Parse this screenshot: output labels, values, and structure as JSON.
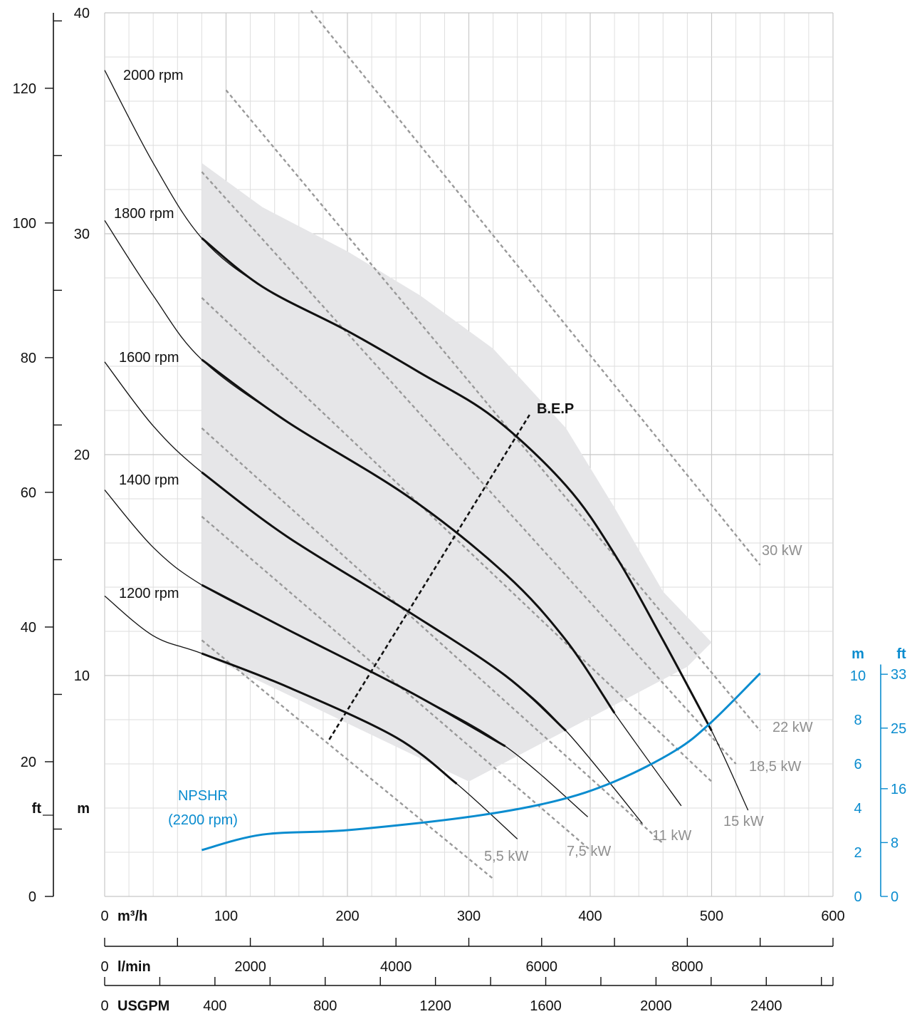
{
  "chart_data": {
    "type": "line",
    "x_unit": "m³/h",
    "x_ticks": [
      0,
      100,
      200,
      300,
      400,
      500,
      600
    ],
    "xlim": [
      0,
      600
    ],
    "ylim_m": [
      0,
      40
    ],
    "y_ticks_m": [
      10,
      20,
      30,
      40
    ],
    "y_unit_m": "m",
    "y_ticks_ft": [
      0,
      20,
      40,
      60,
      80,
      100,
      120
    ],
    "y_unit_ft": "ft",
    "lmin_unit": "l/min",
    "lmin_ticks": [
      0,
      2000,
      4000,
      6000,
      8000
    ],
    "usgpm_unit": "USGPM",
    "usgpm_ticks": [
      0,
      400,
      800,
      1200,
      1600,
      2000,
      2400
    ],
    "npsh_unit_m": "m",
    "npsh_unit_ft": "ft",
    "npsh_ticks_m": [
      0,
      2,
      4,
      6,
      8,
      10
    ],
    "npsh_ticks_ft": [
      0,
      8,
      16,
      25,
      33
    ],
    "bep_label": "B.E.P",
    "series": [
      {
        "name": "2000 rpm",
        "x": [
          0,
          40,
          80,
          130,
          200,
          260,
          320,
          380,
          420,
          460,
          500,
          530
        ],
        "y": [
          37.4,
          33.2,
          29.8,
          27.6,
          25.6,
          23.7,
          21.7,
          18.6,
          15.5,
          11.6,
          7.5,
          3.9
        ]
      },
      {
        "name": "1800 rpm",
        "x": [
          0,
          40,
          80,
          150,
          250,
          330,
          380,
          420,
          475
        ],
        "y": [
          30.6,
          27.2,
          24.3,
          21.5,
          18.1,
          14.6,
          11.6,
          8.3,
          4.1
        ]
      },
      {
        "name": "1600 rpm",
        "x": [
          0,
          40,
          80,
          150,
          250,
          330,
          380,
          443
        ],
        "y": [
          24.2,
          21.3,
          19.2,
          16.3,
          12.9,
          10.0,
          7.5,
          3.3
        ]
      },
      {
        "name": "1400 rpm",
        "x": [
          0,
          40,
          80,
          150,
          250,
          330,
          398
        ],
        "y": [
          18.4,
          15.8,
          14.1,
          12.1,
          9.3,
          6.8,
          3.6
        ]
      },
      {
        "name": "1200 rpm",
        "x": [
          0,
          40,
          80,
          150,
          240,
          290,
          340
        ],
        "y": [
          13.6,
          11.8,
          11.0,
          9.5,
          7.2,
          5.1,
          2.6
        ]
      }
    ],
    "bep": {
      "x": [
        185,
        350
      ],
      "y": [
        7.1,
        21.8
      ]
    },
    "npshr": {
      "name": "NPSHR\n(2200 rpm)",
      "label_lines": [
        "NPSHR",
        "(2200 rpm)"
      ],
      "x": [
        80,
        130,
        200,
        300,
        370,
        420,
        470,
        500,
        540
      ],
      "y": [
        2.1,
        2.8,
        3.0,
        3.6,
        4.3,
        5.2,
        6.6,
        7.9,
        10.1
      ]
    },
    "power_lines": [
      {
        "name": "5,5 kW",
        "x": [
          80,
          320
        ],
        "y": [
          11.6,
          0.8
        ]
      },
      {
        "name": "7,5 kW",
        "x": [
          80,
          400
        ],
        "y": [
          17.2,
          2.1
        ]
      },
      {
        "name": "11 kW",
        "x": [
          80,
          460
        ],
        "y": [
          21.2,
          2.4
        ]
      },
      {
        "name": "15 kW",
        "x": [
          80,
          500
        ],
        "y": [
          27.1,
          5.2
        ]
      },
      {
        "name": "18,5 kW",
        "x": [
          80,
          520
        ],
        "y": [
          32.8,
          6.0
        ]
      },
      {
        "name": "22 kW",
        "x": [
          100,
          540
        ],
        "y": [
          36.5,
          7.5
        ]
      },
      {
        "name": "30 kW",
        "x": [
          170,
          540
        ],
        "y": [
          40.1,
          15.0
        ]
      }
    ],
    "operating_region": {
      "x": [
        80,
        130,
        200,
        260,
        320,
        380,
        420,
        460,
        500,
        480,
        300,
        80
      ],
      "y": [
        33.2,
        31.2,
        29.2,
        27.2,
        24.8,
        21.2,
        17.6,
        13.8,
        11.5,
        10.4,
        5.2,
        11.0
      ]
    }
  }
}
